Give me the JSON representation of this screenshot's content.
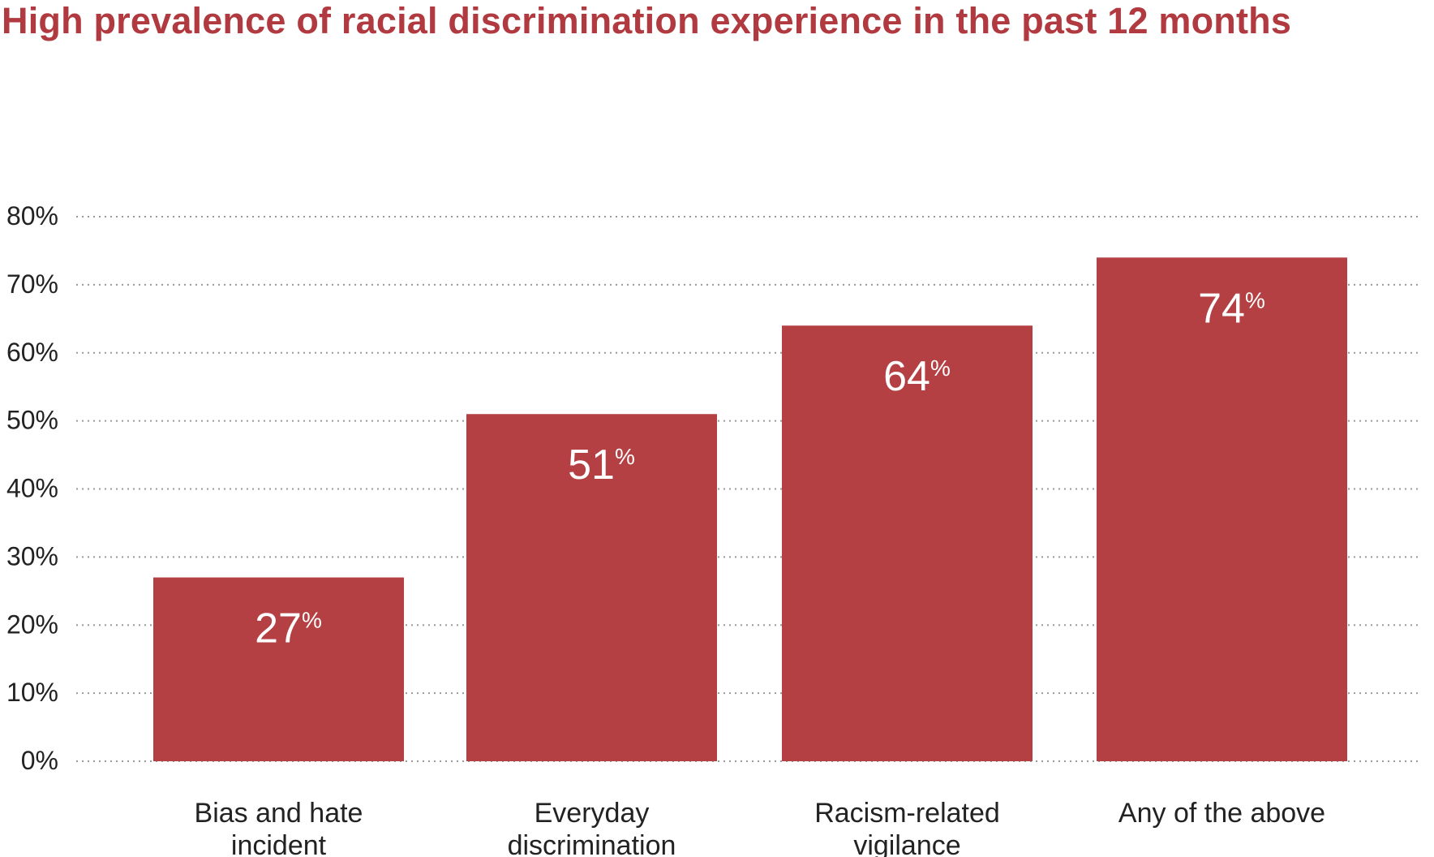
{
  "chart_data": {
    "type": "bar",
    "title": "High prevalence of racial discrimination experience in the past 12 months",
    "categories": [
      [
        "Bias and hate",
        "incident"
      ],
      [
        "Everyday",
        "discrimination"
      ],
      [
        "Racism-related",
        "vigilance"
      ],
      [
        "Any of the above"
      ]
    ],
    "values": [
      27,
      51,
      64,
      74
    ],
    "data_labels": [
      "27",
      "51",
      "64",
      "74"
    ],
    "data_label_suffix": "%",
    "ylim": [
      0,
      80
    ],
    "yticks": [
      "0%",
      "10%",
      "20%",
      "30%",
      "40%",
      "50%",
      "60%",
      "70%",
      "80%"
    ],
    "grid": "dotted horizontal",
    "xlabel": "",
    "ylabel": "",
    "bar_color": "#b54043",
    "title_color": "#b03a40"
  }
}
